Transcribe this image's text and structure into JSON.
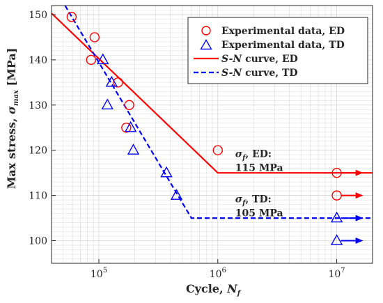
{
  "chart_data": {
    "type": "scatter",
    "xlabel": "Cycle, ",
    "xlabel_var": "N",
    "xlabel_sub": "f",
    "ylabel": "Max stress, ",
    "ylabel_var": "σ",
    "ylabel_sub": "max",
    "ylabel_unit": " [MPa]",
    "x_scale": "log",
    "xlim": [
      40000,
      20000000
    ],
    "ylim": [
      95,
      152
    ],
    "x_ticks": [
      {
        "value": 100000,
        "base": "10",
        "exp": "5"
      },
      {
        "value": 1000000,
        "base": "10",
        "exp": "6"
      },
      {
        "value": 10000000,
        "base": "10",
        "exp": "7"
      }
    ],
    "y_ticks": [
      {
        "value": 100,
        "label": "100"
      },
      {
        "value": 110,
        "label": "110"
      },
      {
        "value": 120,
        "label": "120"
      },
      {
        "value": 130,
        "label": "130"
      },
      {
        "value": 140,
        "label": "140"
      },
      {
        "value": 150,
        "label": "150"
      }
    ],
    "grid": true,
    "legend_position": "top-right",
    "colors": {
      "ed": "#ff0000",
      "td": "#0000ff",
      "grid": "#d9d9d9",
      "axis": "#262626"
    },
    "series": [
      {
        "name": "Experimental data, ED",
        "kind": "marker-circle",
        "points": [
          {
            "x": 59000,
            "y": 149.5
          },
          {
            "x": 92000,
            "y": 145
          },
          {
            "x": 86000,
            "y": 140
          },
          {
            "x": 145000,
            "y": 135
          },
          {
            "x": 180000,
            "y": 130
          },
          {
            "x": 170000,
            "y": 125
          },
          {
            "x": 1000000,
            "y": 120
          },
          {
            "x": 10000000,
            "y": 115
          },
          {
            "x": 10000000,
            "y": 110
          }
        ]
      },
      {
        "name": "Experimental data, TD",
        "kind": "marker-triangle",
        "points": [
          {
            "x": 108000,
            "y": 140
          },
          {
            "x": 128000,
            "y": 135
          },
          {
            "x": 118000,
            "y": 130
          },
          {
            "x": 185000,
            "y": 125
          },
          {
            "x": 195000,
            "y": 120
          },
          {
            "x": 370000,
            "y": 115
          },
          {
            "x": 450000,
            "y": 110
          },
          {
            "x": 10000000,
            "y": 105
          },
          {
            "x": 10000000,
            "y": 100
          }
        ]
      },
      {
        "name": "S-N curve, ED",
        "name_var": "S-N",
        "name_rest": " curve, ED",
        "kind": "line-solid",
        "points": [
          {
            "x": 40000,
            "y": 150.3
          },
          {
            "x": 1000000,
            "y": 115
          },
          {
            "x": 20000000,
            "y": 115
          }
        ]
      },
      {
        "name": "S-N curve, TD",
        "name_var": "S-N",
        "name_rest": " curve, TD",
        "kind": "line-dashed",
        "points": [
          {
            "x": 52000,
            "y": 152
          },
          {
            "x": 600000,
            "y": 105
          },
          {
            "x": 20000000,
            "y": 105
          }
        ]
      }
    ],
    "runouts": [
      {
        "x": 10000000,
        "y": 115,
        "series": "ed"
      },
      {
        "x": 10000000,
        "y": 110,
        "series": "ed"
      },
      {
        "x": 10000000,
        "y": 105,
        "series": "td"
      },
      {
        "x": 10000000,
        "y": 100,
        "series": "td"
      }
    ],
    "annotations": [
      {
        "var": "σ",
        "sub": "f",
        "line1": ", ED:",
        "line2": "115 MPa",
        "x": 1400000,
        "y": 118.5
      },
      {
        "var": "σ",
        "sub": "f",
        "line1": ", TD:",
        "line2": "105 MPa",
        "x": 1400000,
        "y": 108.5
      }
    ]
  }
}
